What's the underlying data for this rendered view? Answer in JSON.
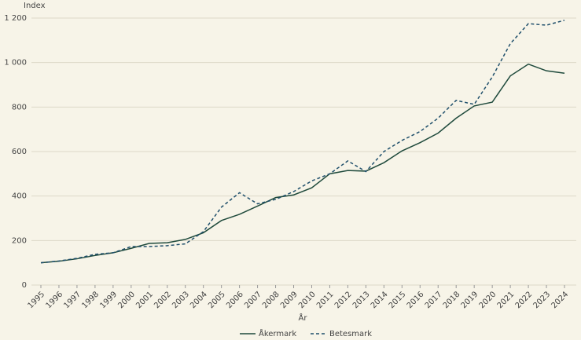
{
  "chart_data": {
    "type": "line",
    "y_label": "Index",
    "x_label": "År",
    "categories": [
      "1995",
      "1996",
      "1997",
      "1998",
      "1999",
      "2000",
      "2001",
      "2002",
      "2003",
      "2004",
      "2005",
      "2006",
      "2007",
      "2008",
      "2009",
      "2010",
      "2011",
      "2012",
      "2013",
      "2014",
      "2015",
      "2016",
      "2017",
      "2018",
      "2019",
      "2020",
      "2021",
      "2022",
      "2023",
      "2024"
    ],
    "series": [
      {
        "name": "Åkermark",
        "color": "#1f4a3c",
        "dashed": false,
        "values": [
          100,
          107,
          118,
          133,
          145,
          165,
          187,
          190,
          205,
          235,
          290,
          318,
          355,
          393,
          405,
          437,
          500,
          515,
          512,
          550,
          603,
          640,
          683,
          750,
          805,
          822,
          940,
          993,
          963,
          952
        ]
      },
      {
        "name": "Betesmark",
        "color": "#1f4f6b",
        "dashed": true,
        "values": [
          100,
          108,
          120,
          138,
          145,
          173,
          173,
          177,
          185,
          240,
          350,
          415,
          365,
          385,
          420,
          468,
          500,
          558,
          510,
          600,
          650,
          690,
          750,
          830,
          812,
          935,
          1085,
          1175,
          1168,
          1190
        ]
      }
    ],
    "ylim": [
      0,
      1200
    ],
    "yticks": [
      0,
      200,
      400,
      600,
      800,
      {
        "value": 1000,
        "label": "1 000"
      },
      {
        "value": 1200,
        "label": "1 200"
      }
    ],
    "grid": true,
    "legend": "bottom"
  }
}
